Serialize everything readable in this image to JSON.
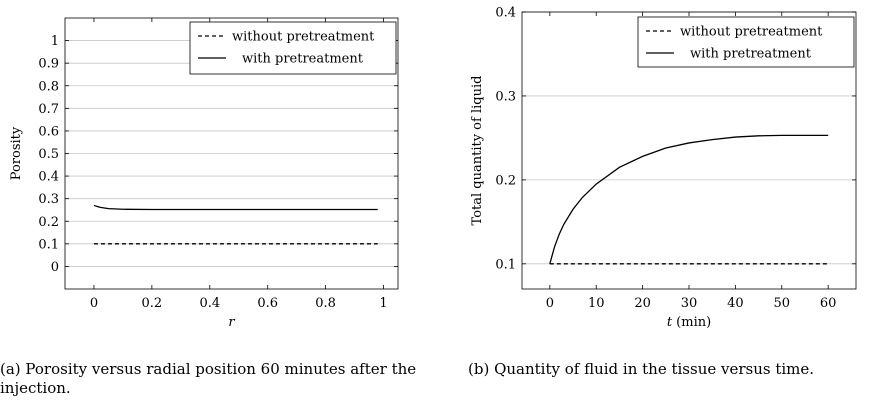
{
  "chart_data": [
    {
      "type": "line",
      "title": "",
      "xlabel": "r",
      "ylabel": "Porosity",
      "xlim": [
        -0.1,
        1.05
      ],
      "ylim": [
        -0.1,
        1.1
      ],
      "xticks": [
        0,
        0.2,
        0.4,
        0.6,
        0.8,
        1
      ],
      "xtick_labels": [
        "0",
        "0.2",
        "0.4",
        "0.6",
        "0.8",
        "1"
      ],
      "yticks": [
        0,
        0.1,
        0.2,
        0.3,
        0.4,
        0.5,
        0.6,
        0.7,
        0.8,
        0.9,
        1
      ],
      "ytick_labels": [
        "0",
        "0.1",
        "0.2",
        "0.3",
        "0.4",
        "0.5",
        "0.6",
        "0.7",
        "0.8",
        "0.9",
        "1"
      ],
      "grid": "horizontal",
      "legend_position": "top-right",
      "series": [
        {
          "name": "without pretreatment",
          "style": "dashed",
          "x": [
            0,
            0.98
          ],
          "y": [
            0.1,
            0.1
          ]
        },
        {
          "name": "with pretreatment",
          "style": "solid",
          "x": [
            0,
            0.02,
            0.05,
            0.1,
            0.2,
            0.4,
            0.6,
            0.8,
            0.98
          ],
          "y": [
            0.27,
            0.262,
            0.256,
            0.253,
            0.252,
            0.252,
            0.252,
            0.252,
            0.252
          ]
        }
      ]
    },
    {
      "type": "line",
      "title": "",
      "xlabel": "t (min)",
      "ylabel": "Total quantity of liquid",
      "xlim": [
        -6,
        66
      ],
      "ylim": [
        0.07,
        0.4
      ],
      "xticks": [
        0,
        10,
        20,
        30,
        40,
        50,
        60
      ],
      "xtick_labels": [
        "0",
        "10",
        "20",
        "30",
        "40",
        "50",
        "60"
      ],
      "yticks": [
        0.1,
        0.2,
        0.3,
        0.4
      ],
      "ytick_labels": [
        "0.1",
        "0.2",
        "0.3",
        "0.4"
      ],
      "grid": "horizontal",
      "legend_position": "top-right",
      "series": [
        {
          "name": "without pretreatment",
          "style": "dashed",
          "x": [
            0,
            60
          ],
          "y": [
            0.1,
            0.1
          ]
        },
        {
          "name": "with pretreatment",
          "style": "solid",
          "x": [
            0,
            1,
            2,
            3,
            5,
            7,
            10,
            15,
            20,
            25,
            30,
            35,
            40,
            45,
            50,
            55,
            60
          ],
          "y": [
            0.1,
            0.12,
            0.135,
            0.147,
            0.165,
            0.179,
            0.195,
            0.215,
            0.228,
            0.238,
            0.244,
            0.248,
            0.251,
            0.2525,
            0.253,
            0.253,
            0.253
          ]
        }
      ]
    }
  ],
  "captions": {
    "a": "(a) Porosity versus radial position 60 minutes after the injection.",
    "b": "(b) Quantity of fluid in the tissue versus time."
  }
}
